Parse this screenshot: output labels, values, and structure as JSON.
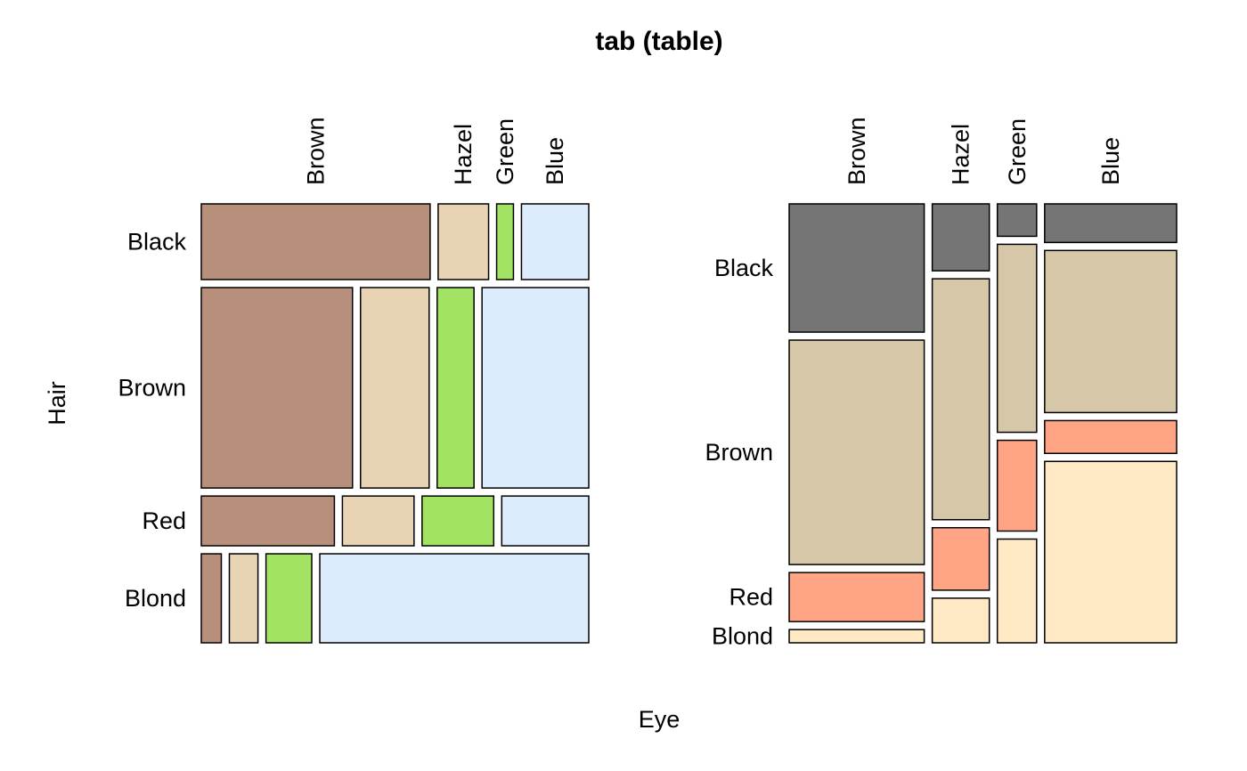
{
  "chart_data": {
    "type": "mosaic",
    "title": "tab (table)",
    "xlabel": "Eye",
    "ylabel": "Hair",
    "hair_levels": [
      "Black",
      "Brown",
      "Red",
      "Blond"
    ],
    "eye_levels": [
      "Brown",
      "Hazel",
      "Green",
      "Blue"
    ],
    "counts": {
      "Black": [
        68,
        15,
        5,
        20
      ],
      "Brown": [
        119,
        54,
        29,
        84
      ],
      "Red": [
        26,
        14,
        14,
        17
      ],
      "Blond": [
        7,
        10,
        16,
        94
      ]
    },
    "panels": [
      {
        "id": "left",
        "split": "hair-first",
        "fill_by": "eye",
        "colors": {
          "Brown": "#b88f7a",
          "Hazel": "#e9d3b5",
          "Green": "#a3e364",
          "Blue": "#dcecfc"
        }
      },
      {
        "id": "right",
        "split": "eye-first",
        "fill_by": "hair",
        "colors": {
          "Black": "#757575",
          "Brown": "#d6c7a9",
          "Red": "#ffa586",
          "Blond": "#ffe8c4"
        }
      }
    ]
  }
}
